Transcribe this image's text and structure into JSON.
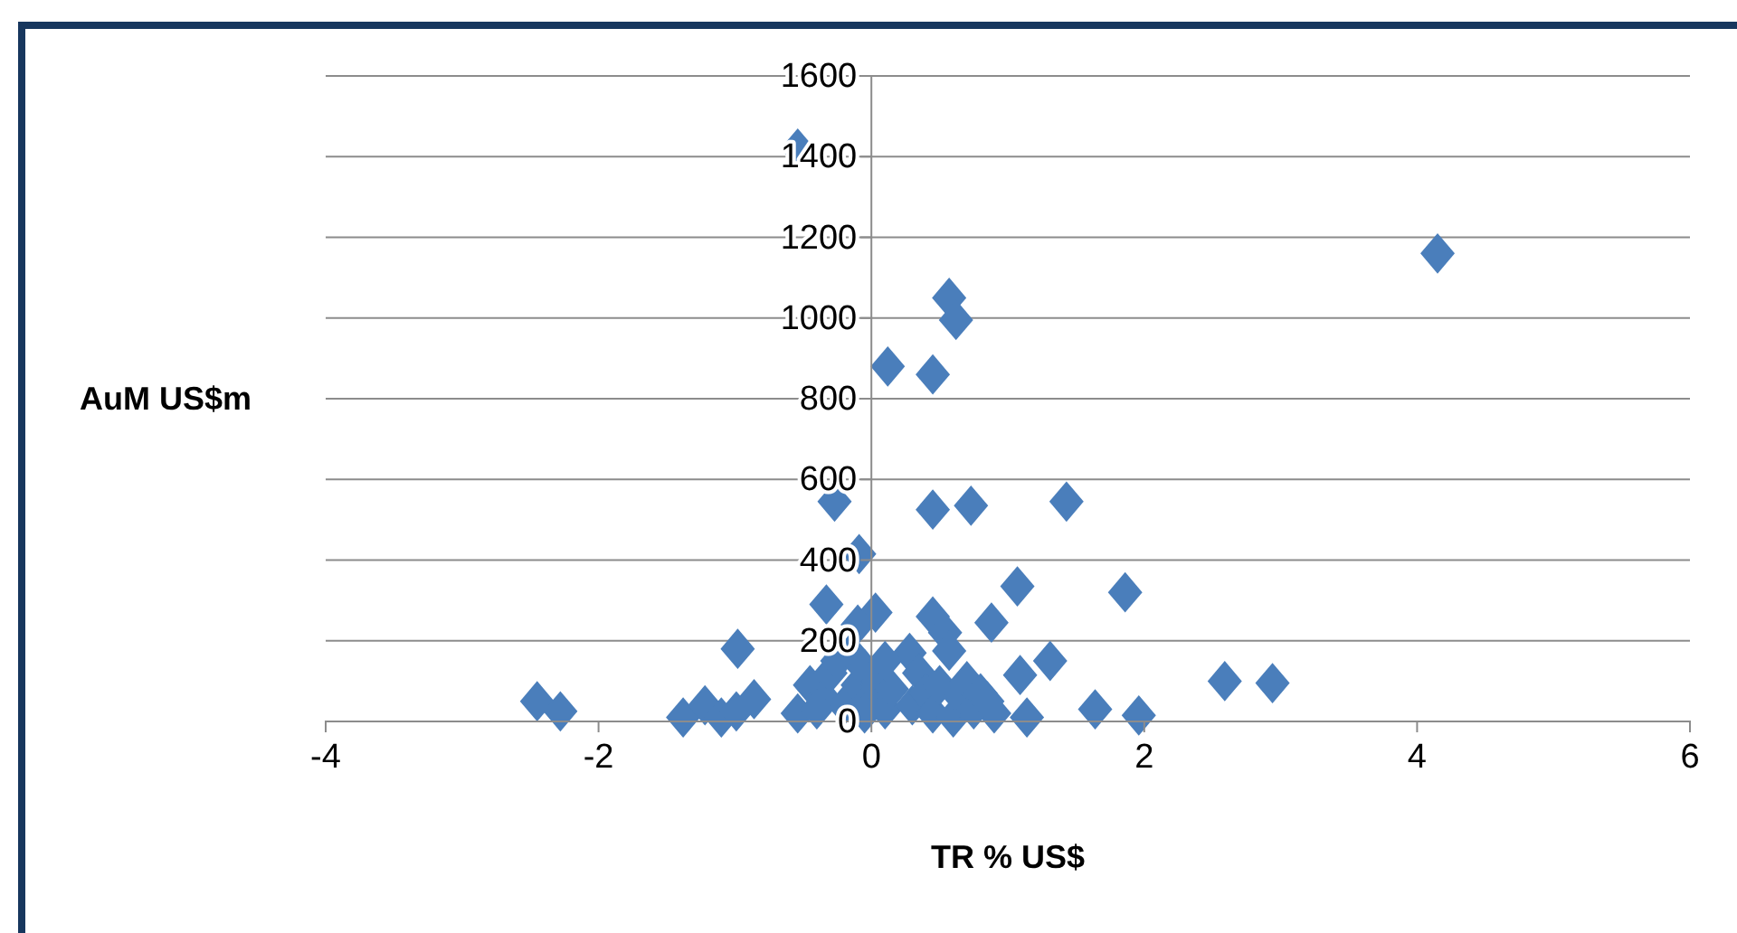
{
  "chart_data": {
    "type": "scatter",
    "xlabel": "TR % US$",
    "ylabel": "AuM US$m",
    "xlim": [
      -4,
      6
    ],
    "xticks": [
      -4,
      -2,
      0,
      2,
      4,
      6
    ],
    "ylim": [
      0,
      1600
    ],
    "yticks": [
      0,
      200,
      400,
      600,
      800,
      1000,
      1200,
      1400,
      1600
    ],
    "grid": "y",
    "marker": "diamond",
    "series": [
      {
        "color": "#4a7ebb",
        "x": [
          -0.54,
          4.15,
          0.57,
          0.62,
          0.12,
          0.45,
          -0.27,
          0.45,
          0.73,
          1.43,
          -0.09,
          -0.33,
          0.03,
          -0.1,
          0.45,
          0.54,
          0.57,
          1.07,
          0.88,
          1.86,
          1.31,
          1.09,
          2.59,
          2.94,
          1.64,
          1.96,
          1.14,
          -2.45,
          -2.28,
          -1.38,
          -1.22,
          -1.1,
          -0.98,
          -0.99,
          -0.86,
          -0.54,
          -0.45,
          -0.35,
          -0.3,
          -0.25,
          -0.15,
          -0.2,
          -0.1,
          -0.05,
          0,
          0.05,
          0.1,
          -0.05,
          0.15,
          0.28,
          0.3,
          0.35,
          0.4,
          0.45,
          0.5,
          0.6,
          0.65,
          0.7,
          0.75,
          0.8,
          0.9,
          0.85,
          -0.4,
          0.1
        ],
        "values": [
          1420,
          1160,
          1050,
          995,
          880,
          860,
          545,
          525,
          535,
          545,
          415,
          290,
          270,
          240,
          260,
          220,
          175,
          335,
          245,
          320,
          150,
          115,
          100,
          95,
          30,
          15,
          10,
          50,
          25,
          10,
          40,
          10,
          180,
          25,
          55,
          20,
          90,
          60,
          120,
          150,
          170,
          40,
          90,
          130,
          60,
          100,
          30,
          20,
          80,
          170,
          40,
          120,
          70,
          20,
          90,
          10,
          60,
          100,
          30,
          70,
          20,
          50,
          30,
          150
        ]
      }
    ]
  }
}
